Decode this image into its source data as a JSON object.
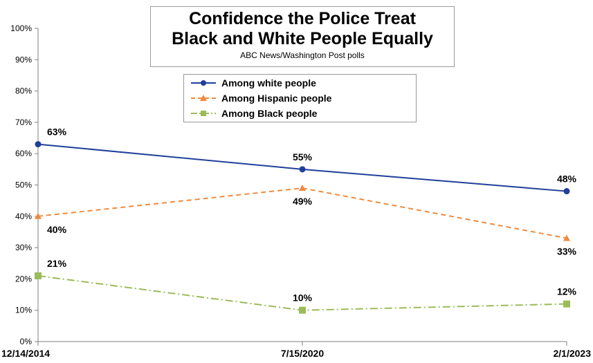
{
  "chart_data": {
    "type": "line",
    "title_lines": [
      "Confidence the Police Treat",
      "Black and White People Equally"
    ],
    "subtitle": "ABC News/Washington Post polls",
    "categories": [
      "12/14/2014",
      "7/15/2020",
      "2/1/2023"
    ],
    "ylim": [
      0,
      100
    ],
    "yticks": [
      0,
      10,
      20,
      30,
      40,
      50,
      60,
      70,
      80,
      90,
      100
    ],
    "ytick_labels": [
      "0%",
      "10%",
      "20%",
      "30%",
      "40%",
      "50%",
      "60%",
      "70%",
      "80%",
      "90%",
      "100%"
    ],
    "grid": false,
    "legend_position": "upper-center",
    "series": [
      {
        "name": "Among white people",
        "values": [
          63,
          55,
          48
        ],
        "labels": [
          "63%",
          "55%",
          "48%"
        ],
        "label_position": [
          "above",
          "above",
          "above"
        ],
        "color": "#1f3f9a",
        "marker": "circle",
        "line_style": "solid"
      },
      {
        "name": "Among Hispanic people",
        "values": [
          40,
          49,
          33
        ],
        "labels": [
          "40%",
          "49%",
          "33%"
        ],
        "label_position": [
          "below",
          "below",
          "below"
        ],
        "color": "#f08a3c",
        "marker": "triangle",
        "line_style": "dashed"
      },
      {
        "name": "Among Black people",
        "values": [
          21,
          10,
          12
        ],
        "labels": [
          "21%",
          "10%",
          "12%"
        ],
        "label_position": [
          "above",
          "above",
          "above"
        ],
        "color": "#9bbb59",
        "marker": "square",
        "line_style": "dashdot"
      }
    ]
  }
}
